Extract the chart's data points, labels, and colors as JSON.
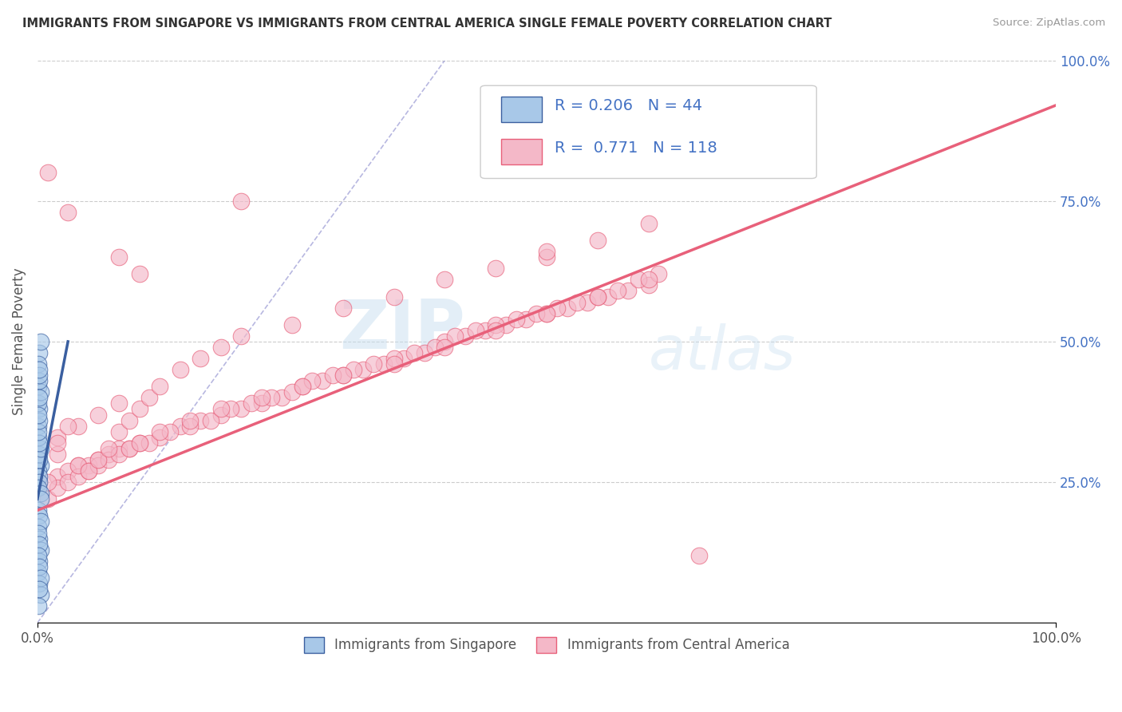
{
  "title": "IMMIGRANTS FROM SINGAPORE VS IMMIGRANTS FROM CENTRAL AMERICA SINGLE FEMALE POVERTY CORRELATION CHART",
  "source": "Source: ZipAtlas.com",
  "ylabel": "Single Female Poverty",
  "color_singapore": "#a8c8e8",
  "color_central_america": "#f4b8c8",
  "line_singapore": "#3a5fa0",
  "line_central_america": "#e8607a",
  "ref_line_color": "#8888cc",
  "background_color": "#ffffff",
  "watermark_zip": "ZIP",
  "watermark_atlas": "atlas",
  "legend_label_1": "Immigrants from Singapore",
  "legend_label_2": "Immigrants from Central America",
  "sg_r": "0.206",
  "sg_n": "44",
  "ca_r": "0.771",
  "ca_n": "118",
  "singapore_x": [
    0.001,
    0.002,
    0.001,
    0.003,
    0.002,
    0.001,
    0.002,
    0.003,
    0.001,
    0.002,
    0.002,
    0.001,
    0.003,
    0.002,
    0.001,
    0.002,
    0.001,
    0.003,
    0.002,
    0.001,
    0.003,
    0.002,
    0.001,
    0.002,
    0.003,
    0.002,
    0.001,
    0.002,
    0.003,
    0.001,
    0.002,
    0.001,
    0.002,
    0.003,
    0.001,
    0.002,
    0.003,
    0.001,
    0.002,
    0.002,
    0.001,
    0.002,
    0.003,
    0.002
  ],
  "singapore_y": [
    0.42,
    0.38,
    0.35,
    0.28,
    0.3,
    0.27,
    0.29,
    0.31,
    0.33,
    0.26,
    0.25,
    0.24,
    0.23,
    0.32,
    0.34,
    0.36,
    0.39,
    0.41,
    0.43,
    0.2,
    0.22,
    0.19,
    0.17,
    0.15,
    0.13,
    0.11,
    0.09,
    0.07,
    0.05,
    0.03,
    0.48,
    0.46,
    0.44,
    0.5,
    0.37,
    0.4,
    0.18,
    0.16,
    0.14,
    0.45,
    0.12,
    0.1,
    0.08,
    0.06
  ],
  "central_america_x": [
    0.02,
    0.04,
    0.06,
    0.08,
    0.1,
    0.12,
    0.14,
    0.16,
    0.18,
    0.2,
    0.22,
    0.24,
    0.26,
    0.28,
    0.3,
    0.32,
    0.34,
    0.36,
    0.38,
    0.4,
    0.42,
    0.44,
    0.46,
    0.48,
    0.5,
    0.52,
    0.54,
    0.56,
    0.58,
    0.6,
    0.03,
    0.05,
    0.07,
    0.09,
    0.11,
    0.13,
    0.15,
    0.17,
    0.19,
    0.21,
    0.23,
    0.25,
    0.27,
    0.29,
    0.31,
    0.33,
    0.35,
    0.37,
    0.39,
    0.41,
    0.43,
    0.45,
    0.47,
    0.49,
    0.51,
    0.53,
    0.55,
    0.57,
    0.59,
    0.61,
    0.01,
    0.02,
    0.03,
    0.04,
    0.05,
    0.06,
    0.07,
    0.08,
    0.09,
    0.1,
    0.12,
    0.15,
    0.18,
    0.22,
    0.26,
    0.3,
    0.35,
    0.4,
    0.45,
    0.5,
    0.55,
    0.6,
    0.02,
    0.04,
    0.06,
    0.08,
    0.5,
    0.08,
    0.03,
    0.01,
    0.02,
    0.01,
    0.03,
    0.04,
    0.02,
    0.05,
    0.06,
    0.07,
    0.08,
    0.09,
    0.1,
    0.11,
    0.12,
    0.14,
    0.16,
    0.18,
    0.2,
    0.25,
    0.3,
    0.35,
    0.4,
    0.45,
    0.5,
    0.55,
    0.6,
    0.65,
    0.1,
    0.2
  ],
  "central_america_y": [
    0.26,
    0.28,
    0.29,
    0.31,
    0.32,
    0.33,
    0.35,
    0.36,
    0.37,
    0.38,
    0.39,
    0.4,
    0.42,
    0.43,
    0.44,
    0.45,
    0.46,
    0.47,
    0.48,
    0.5,
    0.51,
    0.52,
    0.53,
    0.54,
    0.55,
    0.56,
    0.57,
    0.58,
    0.59,
    0.6,
    0.27,
    0.28,
    0.3,
    0.31,
    0.32,
    0.34,
    0.35,
    0.36,
    0.38,
    0.39,
    0.4,
    0.41,
    0.43,
    0.44,
    0.45,
    0.46,
    0.47,
    0.48,
    0.49,
    0.51,
    0.52,
    0.53,
    0.54,
    0.55,
    0.56,
    0.57,
    0.58,
    0.59,
    0.61,
    0.62,
    0.22,
    0.24,
    0.25,
    0.26,
    0.27,
    0.28,
    0.29,
    0.3,
    0.31,
    0.32,
    0.34,
    0.36,
    0.38,
    0.4,
    0.42,
    0.44,
    0.46,
    0.49,
    0.52,
    0.55,
    0.58,
    0.61,
    0.33,
    0.35,
    0.37,
    0.39,
    0.65,
    0.65,
    0.73,
    0.8,
    0.3,
    0.25,
    0.35,
    0.28,
    0.32,
    0.27,
    0.29,
    0.31,
    0.34,
    0.36,
    0.38,
    0.4,
    0.42,
    0.45,
    0.47,
    0.49,
    0.51,
    0.53,
    0.56,
    0.58,
    0.61,
    0.63,
    0.66,
    0.68,
    0.71,
    0.12,
    0.62,
    0.75
  ],
  "xlim": [
    0.0,
    1.0
  ],
  "ylim": [
    0.0,
    1.0
  ],
  "sg_line_x0": 0.0,
  "sg_line_x1": 0.03,
  "sg_line_y0": 0.22,
  "sg_line_y1": 0.5,
  "ca_line_x0": 0.0,
  "ca_line_x1": 1.0,
  "ca_line_y0": 0.2,
  "ca_line_y1": 0.92,
  "ref_line_x0": 0.0,
  "ref_line_y0": 0.0,
  "ref_line_x1": 0.4,
  "ref_line_y1": 1.0
}
